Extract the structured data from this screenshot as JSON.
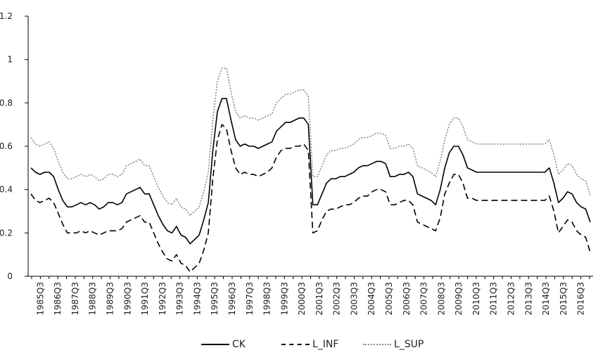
{
  "chart_data": {
    "type": "line",
    "title": "",
    "xlabel": "",
    "ylabel": "",
    "ylim": [
      0,
      1.2
    ],
    "yticks": [
      "0",
      "0.2",
      "0.4",
      "0.6",
      "0.8",
      "1",
      "1.2"
    ],
    "grid": false,
    "legend_position": "bottom",
    "x_tick_labels": [
      "1985Q3",
      "1986Q3",
      "1987Q3",
      "1988Q3",
      "1989Q3",
      "1990Q3",
      "1991Q3",
      "1992Q3",
      "1993Q3",
      "1994Q3",
      "1995Q3",
      "1996Q3",
      "1997Q3",
      "1998Q3",
      "1999Q3",
      "2000Q3",
      "2001Q3",
      "2002Q3",
      "2003Q3",
      "2004Q3",
      "2005Q3",
      "2006Q3",
      "2007Q3",
      "2008Q3",
      "2009Q3",
      "2010Q3",
      "2011Q3",
      "2012Q3",
      "2013Q3",
      "2014Q3",
      "2015Q3",
      "2016Q3"
    ],
    "series": [
      {
        "name": "CK",
        "style": "solid",
        "color": "#000000",
        "values": [
          0.5,
          0.48,
          0.47,
          0.48,
          0.48,
          0.46,
          0.4,
          0.35,
          0.32,
          0.32,
          0.33,
          0.34,
          0.33,
          0.34,
          0.33,
          0.31,
          0.32,
          0.34,
          0.34,
          0.33,
          0.34,
          0.38,
          0.39,
          0.4,
          0.41,
          0.38,
          0.38,
          0.33,
          0.28,
          0.24,
          0.21,
          0.2,
          0.23,
          0.19,
          0.18,
          0.15,
          0.17,
          0.19,
          0.26,
          0.34,
          0.58,
          0.76,
          0.82,
          0.82,
          0.72,
          0.63,
          0.6,
          0.61,
          0.6,
          0.6,
          0.59,
          0.6,
          0.61,
          0.62,
          0.67,
          0.69,
          0.71,
          0.71,
          0.72,
          0.73,
          0.73,
          0.7,
          0.33,
          0.33,
          0.38,
          0.43,
          0.45,
          0.45,
          0.46,
          0.46,
          0.47,
          0.48,
          0.5,
          0.51,
          0.51,
          0.52,
          0.53,
          0.53,
          0.52,
          0.46,
          0.46,
          0.47,
          0.47,
          0.48,
          0.46,
          0.38,
          0.37,
          0.36,
          0.35,
          0.33,
          0.4,
          0.5,
          0.57,
          0.6,
          0.6,
          0.56,
          0.5,
          0.49,
          0.48,
          0.48,
          0.48,
          0.48,
          0.48,
          0.48,
          0.48,
          0.48,
          0.48,
          0.48,
          0.48,
          0.48,
          0.48,
          0.48,
          0.48,
          0.48,
          0.5,
          0.43,
          0.34,
          0.36,
          0.39,
          0.38,
          0.34,
          0.32,
          0.31,
          0.25
        ]
      },
      {
        "name": "L_INF",
        "style": "dashed",
        "color": "#000000",
        "values": [
          0.38,
          0.35,
          0.34,
          0.35,
          0.36,
          0.34,
          0.29,
          0.24,
          0.2,
          0.2,
          0.2,
          0.21,
          0.2,
          0.21,
          0.2,
          0.19,
          0.2,
          0.21,
          0.21,
          0.21,
          0.22,
          0.25,
          0.26,
          0.27,
          0.28,
          0.25,
          0.25,
          0.2,
          0.15,
          0.11,
          0.08,
          0.07,
          0.1,
          0.06,
          0.05,
          0.02,
          0.04,
          0.06,
          0.12,
          0.2,
          0.45,
          0.63,
          0.7,
          0.68,
          0.58,
          0.5,
          0.47,
          0.48,
          0.47,
          0.47,
          0.46,
          0.47,
          0.48,
          0.5,
          0.55,
          0.58,
          0.59,
          0.59,
          0.6,
          0.6,
          0.61,
          0.58,
          0.2,
          0.21,
          0.26,
          0.3,
          0.31,
          0.31,
          0.32,
          0.33,
          0.33,
          0.34,
          0.36,
          0.37,
          0.37,
          0.39,
          0.4,
          0.4,
          0.39,
          0.33,
          0.33,
          0.34,
          0.35,
          0.35,
          0.33,
          0.25,
          0.24,
          0.23,
          0.22,
          0.21,
          0.27,
          0.38,
          0.43,
          0.47,
          0.47,
          0.43,
          0.36,
          0.36,
          0.35,
          0.35,
          0.35,
          0.35,
          0.35,
          0.35,
          0.35,
          0.35,
          0.35,
          0.35,
          0.35,
          0.35,
          0.35,
          0.35,
          0.35,
          0.35,
          0.37,
          0.3,
          0.2,
          0.23,
          0.26,
          0.25,
          0.21,
          0.19,
          0.18,
          0.11
        ]
      },
      {
        "name": "L_SUP",
        "style": "dotted",
        "color": "#888888",
        "values": [
          0.64,
          0.61,
          0.6,
          0.61,
          0.62,
          0.59,
          0.53,
          0.48,
          0.45,
          0.45,
          0.46,
          0.47,
          0.46,
          0.47,
          0.46,
          0.44,
          0.45,
          0.47,
          0.47,
          0.46,
          0.47,
          0.51,
          0.52,
          0.53,
          0.54,
          0.51,
          0.51,
          0.46,
          0.41,
          0.37,
          0.34,
          0.33,
          0.36,
          0.32,
          0.31,
          0.28,
          0.3,
          0.32,
          0.39,
          0.48,
          0.72,
          0.9,
          0.96,
          0.96,
          0.85,
          0.76,
          0.73,
          0.74,
          0.73,
          0.73,
          0.72,
          0.73,
          0.74,
          0.75,
          0.8,
          0.82,
          0.84,
          0.84,
          0.85,
          0.86,
          0.86,
          0.83,
          0.46,
          0.46,
          0.51,
          0.56,
          0.58,
          0.58,
          0.59,
          0.59,
          0.6,
          0.61,
          0.63,
          0.64,
          0.64,
          0.65,
          0.66,
          0.66,
          0.65,
          0.59,
          0.59,
          0.6,
          0.6,
          0.61,
          0.59,
          0.51,
          0.5,
          0.49,
          0.48,
          0.46,
          0.53,
          0.63,
          0.7,
          0.73,
          0.73,
          0.69,
          0.63,
          0.62,
          0.61,
          0.61,
          0.61,
          0.61,
          0.61,
          0.61,
          0.61,
          0.61,
          0.61,
          0.61,
          0.61,
          0.61,
          0.61,
          0.61,
          0.61,
          0.61,
          0.63,
          0.56,
          0.47,
          0.49,
          0.52,
          0.51,
          0.47,
          0.45,
          0.44,
          0.37
        ]
      }
    ]
  }
}
